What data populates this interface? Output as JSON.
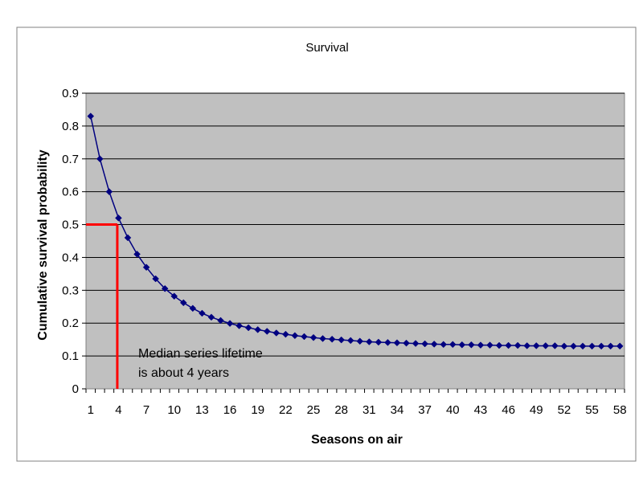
{
  "chart_data": {
    "type": "line",
    "title": "Survival",
    "xlabel": "Seasons on air",
    "ylabel": "Cumulative survival probability",
    "x": [
      1,
      2,
      3,
      4,
      5,
      6,
      7,
      8,
      9,
      10,
      11,
      12,
      13,
      14,
      15,
      16,
      17,
      18,
      19,
      20,
      21,
      22,
      23,
      24,
      25,
      26,
      27,
      28,
      29,
      30,
      31,
      32,
      33,
      34,
      35,
      36,
      37,
      38,
      39,
      40,
      41,
      42,
      43,
      44,
      45,
      46,
      47,
      48,
      49,
      50,
      51,
      52,
      53,
      54,
      55,
      56,
      57,
      58
    ],
    "x_tick_labels": [
      "1",
      "4",
      "7",
      "10",
      "13",
      "16",
      "19",
      "22",
      "25",
      "28",
      "31",
      "34",
      "37",
      "40",
      "43",
      "46",
      "49",
      "52",
      "55",
      "58"
    ],
    "y_tick_labels": [
      "0",
      "0.1",
      "0.2",
      "0.3",
      "0.4",
      "0.5",
      "0.6",
      "0.7",
      "0.8",
      "0.9"
    ],
    "ylim": [
      0,
      0.9
    ],
    "grid": "horizontal",
    "series": [
      {
        "color": "#000080",
        "marker": "diamond",
        "values": [
          0.83,
          0.7,
          0.6,
          0.52,
          0.46,
          0.41,
          0.37,
          0.335,
          0.305,
          0.282,
          0.262,
          0.245,
          0.23,
          0.218,
          0.208,
          0.199,
          0.192,
          0.186,
          0.18,
          0.175,
          0.17,
          0.166,
          0.162,
          0.159,
          0.156,
          0.153,
          0.151,
          0.149,
          0.147,
          0.145,
          0.143,
          0.142,
          0.141,
          0.14,
          0.139,
          0.138,
          0.137,
          0.136,
          0.135,
          0.135,
          0.134,
          0.134,
          0.133,
          0.133,
          0.132,
          0.132,
          0.132,
          0.131,
          0.131,
          0.131,
          0.131,
          0.13,
          0.13,
          0.13,
          0.13,
          0.13,
          0.13,
          0.13
        ]
      }
    ],
    "annotation": {
      "lines": [
        "Median series lifetime",
        "is about 4 years"
      ],
      "x": 4,
      "y": 0.5,
      "color": "#ff0000"
    },
    "colors": {
      "plot_background": "#c0c0c0",
      "gridline": "#000000",
      "frame": "#808080"
    }
  }
}
